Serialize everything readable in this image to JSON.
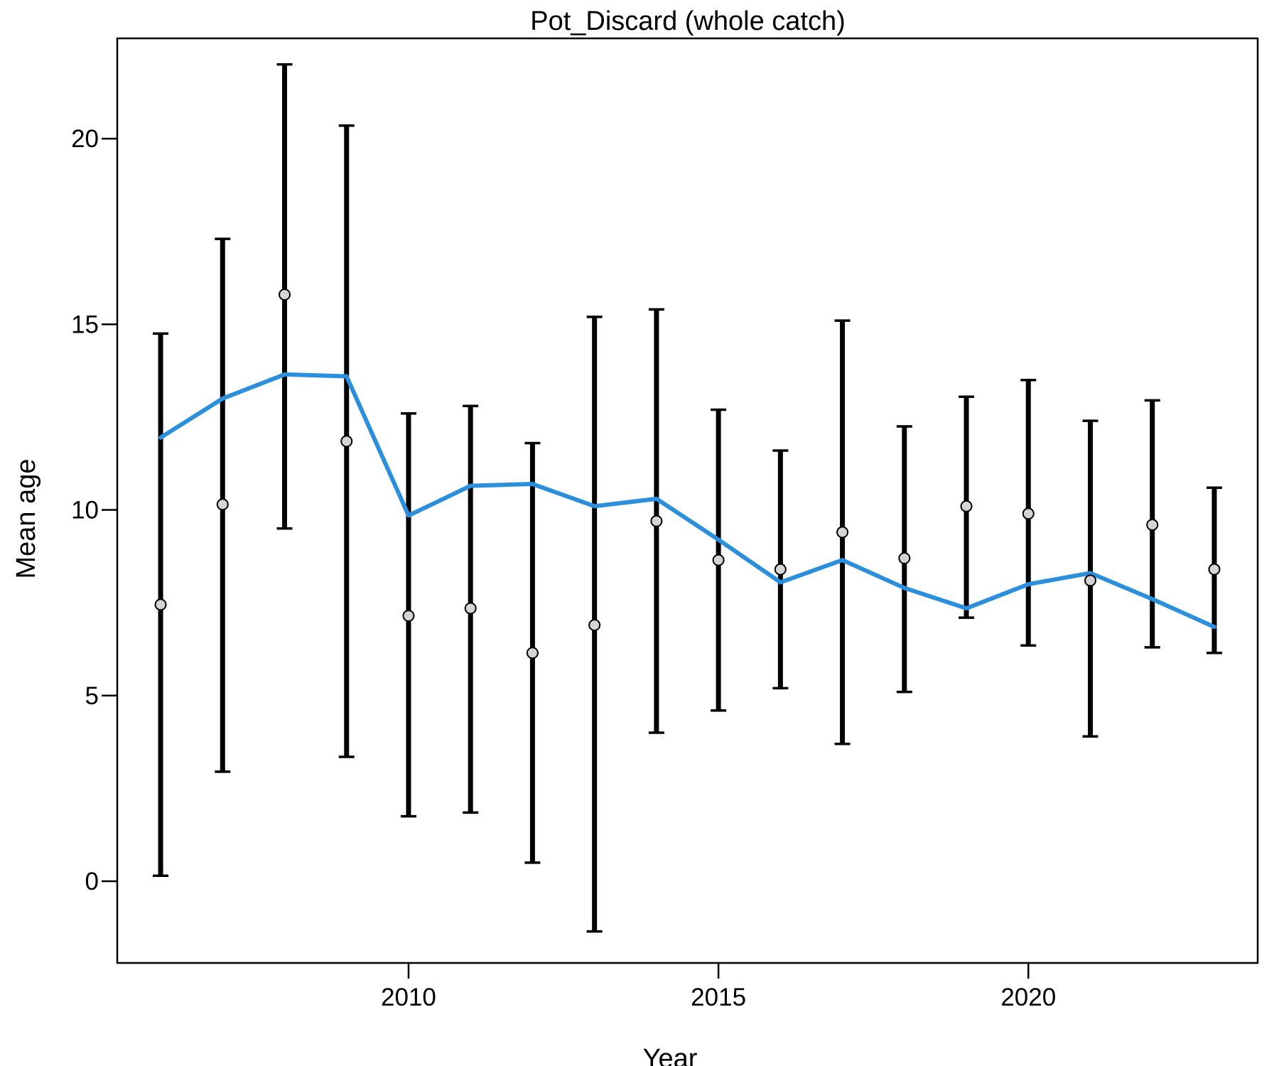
{
  "chart_data": {
    "type": "scatter",
    "title": "Pot_Discard (whole catch)",
    "xlabel": "Year",
    "ylabel": "Mean age",
    "xlim": [
      2005.3,
      2023.7
    ],
    "ylim": [
      -2.2,
      22.7
    ],
    "x_ticks": [
      2010,
      2015,
      2020
    ],
    "y_ticks": [
      0,
      5,
      10,
      15,
      20
    ],
    "grid": false,
    "legend": "none",
    "colors": {
      "fit_line": "#2c8fdc",
      "points_fill": "#d4d4d4",
      "error_bars": "#000000"
    },
    "series": [
      {
        "kind": "observed_points_with_intervals",
        "x": [
          2006,
          2007,
          2008,
          2009,
          2010,
          2011,
          2012,
          2013,
          2014,
          2015,
          2016,
          2017,
          2018,
          2019,
          2020,
          2021,
          2022,
          2023
        ],
        "y": [
          7.45,
          10.15,
          15.8,
          11.85,
          7.15,
          7.35,
          6.15,
          6.9,
          9.7,
          8.65,
          8.4,
          9.4,
          8.7,
          10.1,
          9.9,
          8.1,
          9.6,
          8.4
        ],
        "lower": [
          0.15,
          2.95,
          9.5,
          3.35,
          1.75,
          1.85,
          0.5,
          -1.35,
          4.0,
          4.6,
          5.2,
          3.7,
          5.1,
          7.1,
          6.35,
          3.9,
          6.3,
          6.15
        ],
        "upper": [
          14.75,
          17.3,
          22.0,
          20.35,
          12.6,
          12.8,
          11.8,
          15.2,
          15.4,
          12.7,
          11.6,
          15.1,
          12.25,
          13.05,
          13.5,
          12.4,
          12.95,
          10.6
        ]
      },
      {
        "kind": "expected_line",
        "x": [
          2006,
          2007,
          2008,
          2009,
          2010,
          2011,
          2012,
          2013,
          2014,
          2015,
          2016,
          2017,
          2018,
          2019,
          2020,
          2021,
          2022,
          2023
        ],
        "y": [
          11.95,
          13.0,
          13.65,
          13.6,
          9.85,
          10.65,
          10.7,
          10.1,
          10.3,
          9.2,
          8.05,
          8.65,
          7.9,
          7.35,
          8.0,
          8.3,
          7.6,
          6.85
        ]
      }
    ]
  }
}
